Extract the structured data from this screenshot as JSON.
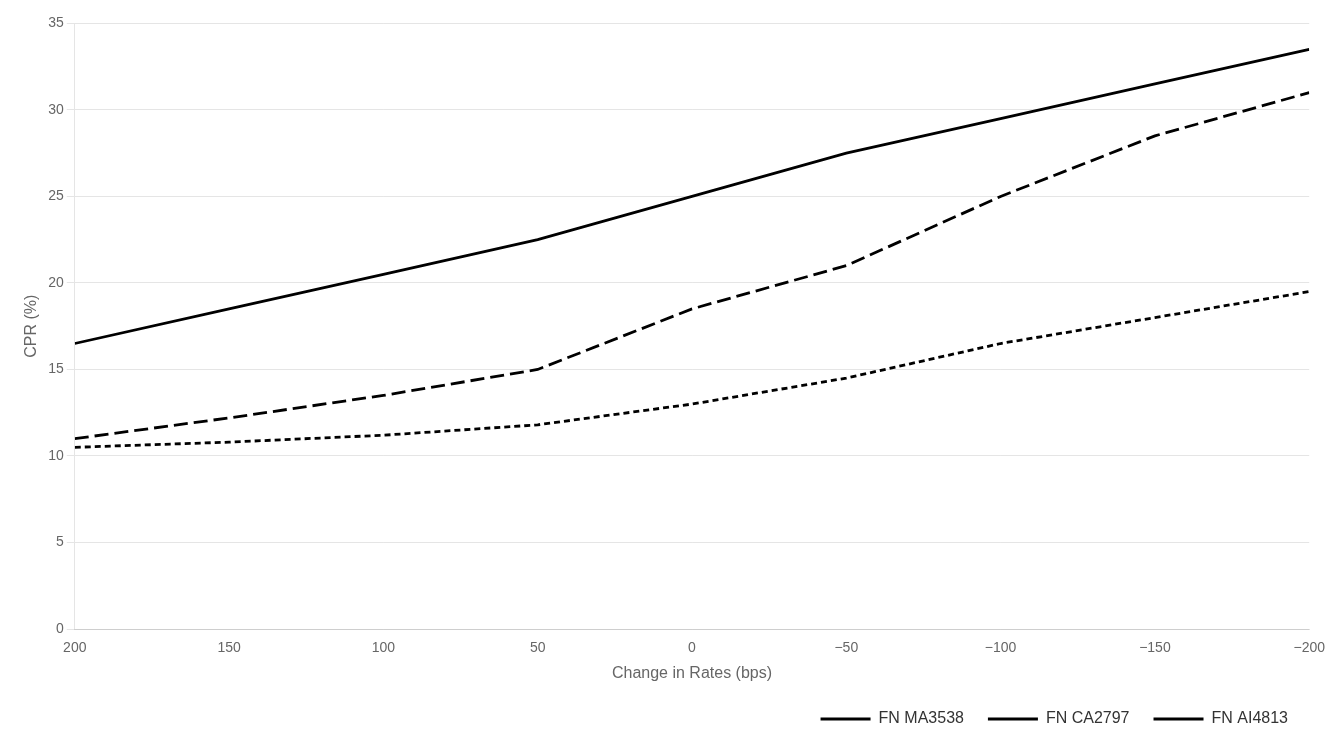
{
  "chart_data": {
    "type": "line",
    "x_label": "Change in Rates (bps)",
    "y_label": "CPR (%)",
    "x": [
      200,
      150,
      100,
      50,
      0,
      -50,
      -100,
      -150,
      -200
    ],
    "xlim": [
      200,
      -200
    ],
    "xticks": [
      200,
      150,
      100,
      50,
      0,
      {
        "value": -50,
        "label": "−50"
      },
      {
        "value": -100,
        "label": "−100"
      },
      {
        "value": -150,
        "label": "−150"
      },
      {
        "value": -200,
        "label": "−200"
      }
    ],
    "ylim": [
      0,
      35
    ],
    "yticks": [
      0,
      5,
      10,
      15,
      20,
      25,
      30,
      35
    ],
    "grid": "y",
    "legend": "lower right",
    "series": [
      {
        "name": "FN MA3538",
        "color": "#000000",
        "line_style": "solid",
        "values": [
          16.5,
          18.5,
          20.5,
          22.5,
          25.0,
          27.5,
          29.5,
          31.5,
          33.5
        ]
      },
      {
        "name": "FN CA2797",
        "color": "#000000",
        "line_style": "long_dashed",
        "values": [
          11.0,
          12.2,
          13.5,
          15.0,
          18.5,
          21.0,
          25.0,
          28.5,
          31.0
        ]
      },
      {
        "name": "FN AI4813",
        "color": "#000000",
        "line_style": "dashed",
        "values": [
          10.5,
          10.8,
          11.2,
          11.8,
          13.0,
          14.5,
          16.5,
          18.0,
          19.5
        ]
      }
    ]
  }
}
